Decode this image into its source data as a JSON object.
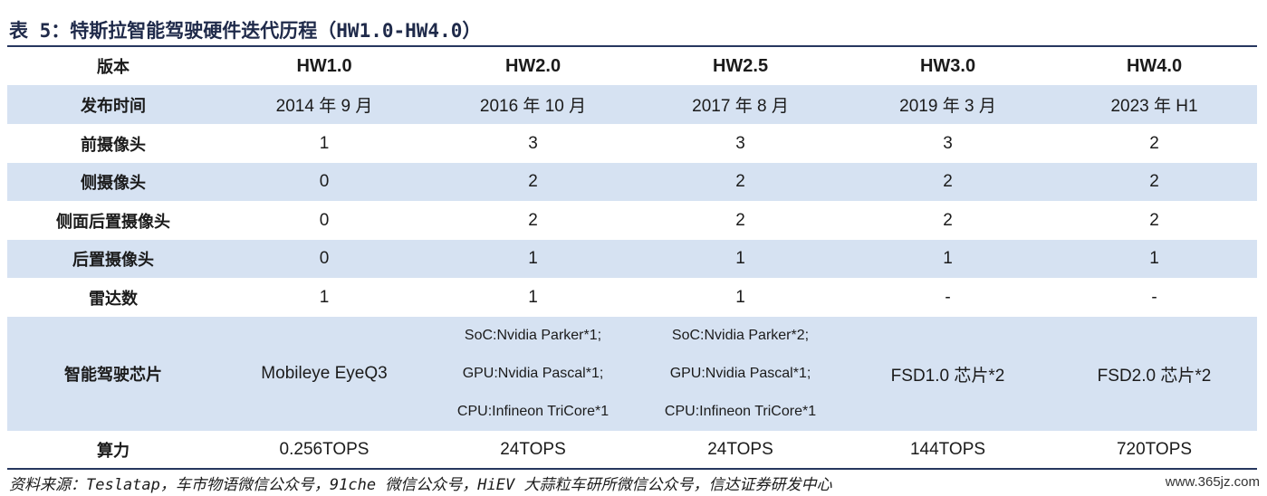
{
  "title": "表 5：特斯拉智能驾驶硬件迭代历程（HW1.0-HW4.0）",
  "header": {
    "label": "版本",
    "versions": [
      "HW1.0",
      "HW2.0",
      "HW2.5",
      "HW3.0",
      "HW4.0"
    ]
  },
  "rows": [
    {
      "label": "发布时间",
      "values": [
        "2014 年 9 月",
        "2016 年 10 月",
        "2017 年 8 月",
        "2019 年 3 月",
        "2023 年 H1"
      ]
    },
    {
      "label": "前摄像头",
      "values": [
        "1",
        "3",
        "3",
        "3",
        "2"
      ]
    },
    {
      "label": "侧摄像头",
      "values": [
        "0",
        "2",
        "2",
        "2",
        "2"
      ]
    },
    {
      "label": "侧面后置摄像头",
      "values": [
        "0",
        "2",
        "2",
        "2",
        "2"
      ]
    },
    {
      "label": "后置摄像头",
      "values": [
        "0",
        "1",
        "1",
        "1",
        "1"
      ]
    },
    {
      "label": "雷达数",
      "values": [
        "1",
        "1",
        "1",
        "-",
        "-"
      ]
    }
  ],
  "chip_row": {
    "label": "智能驾驶芯片",
    "hw10": "Mobileye EyeQ3",
    "hw20": [
      "SoC:Nvidia Parker*1;",
      "GPU:Nvidia Pascal*1;",
      "CPU:Infineon TriCore*1"
    ],
    "hw25": [
      "SoC:Nvidia Parker*2;",
      "GPU:Nvidia Pascal*1;",
      "CPU:Infineon TriCore*1"
    ],
    "hw30": "FSD1.0 芯片*2",
    "hw40": "FSD2.0 芯片*2"
  },
  "compute_row": {
    "label": "算力",
    "values": [
      "0.256TOPS",
      "24TOPS",
      "24TOPS",
      "144TOPS",
      "720TOPS"
    ]
  },
  "source": "资料来源：Teslatap，车市物语微信公众号，91che 微信公众号，HiEV 大蒜粒车研所微信公众号，信达证券研发中心",
  "watermark": "www.365jz.com"
}
